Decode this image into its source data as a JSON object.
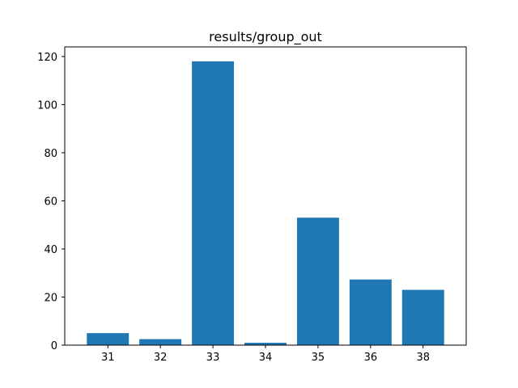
{
  "chart_data": {
    "type": "bar",
    "title": "results/group_out",
    "xlabel": "",
    "ylabel": "",
    "categories": [
      "31",
      "32",
      "33",
      "34",
      "35",
      "36",
      "38"
    ],
    "values": [
      5,
      2.5,
      118,
      1,
      53,
      27.3,
      23
    ],
    "ylim": [
      0,
      124
    ],
    "yticks": [
      0,
      20,
      40,
      60,
      80,
      100,
      120
    ],
    "grid": false,
    "legend": "none",
    "bar_color": "#1f77b4"
  }
}
